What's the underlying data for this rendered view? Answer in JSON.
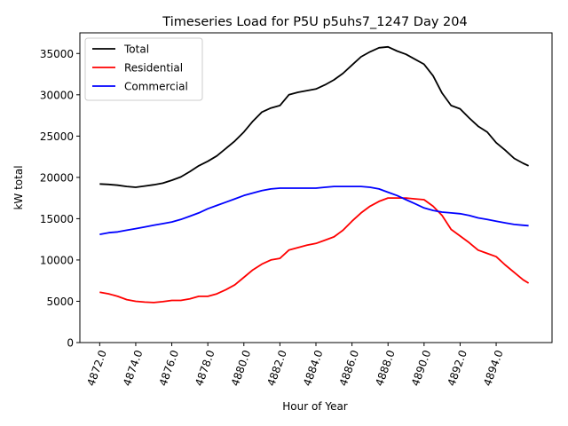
{
  "chart_data": {
    "type": "line",
    "title": "Timeseries Load for P5U p5uhs7_1247  Day 204",
    "xlabel": "Hour of Year",
    "ylabel": "kW total",
    "xlim": [
      4870.9,
      4897.1
    ],
    "ylim": [
      0,
      37500
    ],
    "xticks": [
      4872,
      4874,
      4876,
      4878,
      4880,
      4882,
      4884,
      4886,
      4888,
      4890,
      4892,
      4894
    ],
    "xtick_labels": [
      "4872.0",
      "4874.0",
      "4876.0",
      "4878.0",
      "4880.0",
      "4882.0",
      "4884.0",
      "4886.0",
      "4888.0",
      "4890.0",
      "4892.0",
      "4894.0"
    ],
    "yticks": [
      0,
      5000,
      10000,
      15000,
      20000,
      25000,
      30000,
      35000
    ],
    "ytick_labels": [
      "0",
      "5000",
      "10000",
      "15000",
      "20000",
      "25000",
      "30000",
      "35000"
    ],
    "grid": false,
    "legend_position": "upper-left",
    "x": [
      4872,
      4872.5,
      4873,
      4873.5,
      4874,
      4874.5,
      4875,
      4875.5,
      4876,
      4876.5,
      4877,
      4877.5,
      4878,
      4878.5,
      4879,
      4879.5,
      4880,
      4880.5,
      4881,
      4881.5,
      4882,
      4882.5,
      4883,
      4883.5,
      4884,
      4884.5,
      4885,
      4885.5,
      4886,
      4886.5,
      4887,
      4887.5,
      4888,
      4888.5,
      4889,
      4889.5,
      4890,
      4890.5,
      4891,
      4891.5,
      4892,
      4892.5,
      4893,
      4893.5,
      4894,
      4894.5,
      4895,
      4895.5,
      4895.8
    ],
    "series": [
      {
        "name": "Total",
        "color": "#000000",
        "values": [
          19200,
          19150,
          19050,
          18900,
          18800,
          18950,
          19100,
          19300,
          19650,
          20050,
          20700,
          21400,
          21950,
          22600,
          23500,
          24400,
          25500,
          26800,
          27900,
          28400,
          28700,
          30000,
          30300,
          30500,
          30700,
          31200,
          31800,
          32600,
          33600,
          34600,
          35200,
          35700,
          35800,
          35300,
          34900,
          34300,
          33700,
          32300,
          30200,
          28700,
          28300,
          27200,
          26200,
          25500,
          24200,
          23300,
          22300,
          21700,
          21400
        ]
      },
      {
        "name": "Residential",
        "color": "#ff0000",
        "values": [
          6100,
          5900,
          5600,
          5200,
          5000,
          4900,
          4850,
          4950,
          5100,
          5100,
          5300,
          5600,
          5600,
          5900,
          6400,
          7000,
          7900,
          8800,
          9500,
          10000,
          10200,
          11200,
          11500,
          11800,
          12000,
          12400,
          12800,
          13600,
          14700,
          15700,
          16500,
          17100,
          17500,
          17500,
          17500,
          17400,
          17300,
          16500,
          15400,
          13700,
          12900,
          12100,
          11200,
          10800,
          10400,
          9400,
          8500,
          7600,
          7200
        ]
      },
      {
        "name": "Commercial",
        "color": "#0000ff",
        "values": [
          13100,
          13300,
          13400,
          13600,
          13800,
          14000,
          14200,
          14400,
          14600,
          14900,
          15300,
          15700,
          16200,
          16600,
          17000,
          17400,
          17800,
          18100,
          18400,
          18600,
          18700,
          18700,
          18700,
          18700,
          18700,
          18800,
          18900,
          18900,
          18900,
          18900,
          18800,
          18600,
          18200,
          17800,
          17300,
          16800,
          16300,
          16000,
          15800,
          15700,
          15600,
          15400,
          15100,
          14900,
          14700,
          14500,
          14300,
          14200,
          14150
        ]
      }
    ]
  }
}
